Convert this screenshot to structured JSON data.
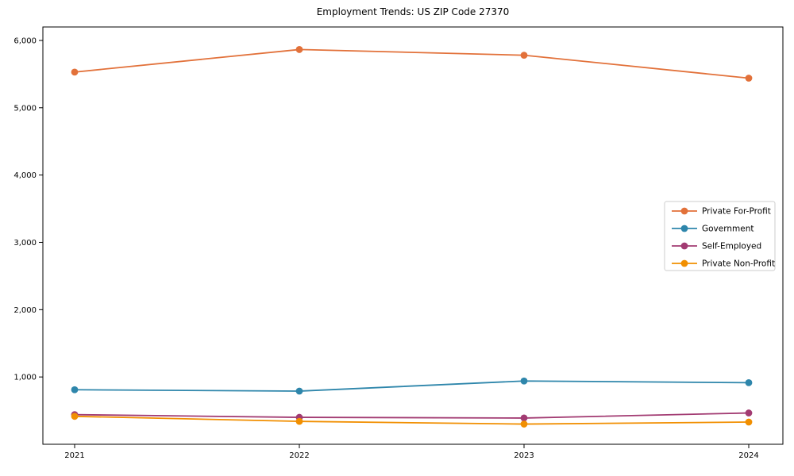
{
  "title": "Employment Trends: US ZIP Code 27370",
  "chart_data": {
    "type": "line",
    "title": "Employment Trends: US ZIP Code 27370",
    "categories": [
      "2021",
      "2022",
      "2023",
      "2024"
    ],
    "series": [
      {
        "name": "Private For-Profit",
        "color": "#E2713A",
        "values": [
          5530,
          5865,
          5780,
          5440
        ]
      },
      {
        "name": "Government",
        "color": "#2E86AB",
        "values": [
          810,
          790,
          940,
          915
        ]
      },
      {
        "name": "Self-Employed",
        "color": "#A23B72",
        "values": [
          440,
          400,
          390,
          465
        ]
      },
      {
        "name": "Private Non-Profit",
        "color": "#F18F01",
        "values": [
          415,
          340,
          300,
          330
        ]
      }
    ],
    "xlabel": "",
    "ylabel": "",
    "ylim": [
      0,
      6200
    ],
    "yticks": [
      1000,
      2000,
      3000,
      4000,
      5000,
      6000
    ],
    "ytick_labels": [
      "1,000",
      "2,000",
      "3,000",
      "4,000",
      "5,000",
      "6,000"
    ],
    "grid": false,
    "legend_position": "right-center",
    "axis_color": "#000000",
    "background_color": "#ffffff",
    "legend_border_color": "#cccccc"
  }
}
